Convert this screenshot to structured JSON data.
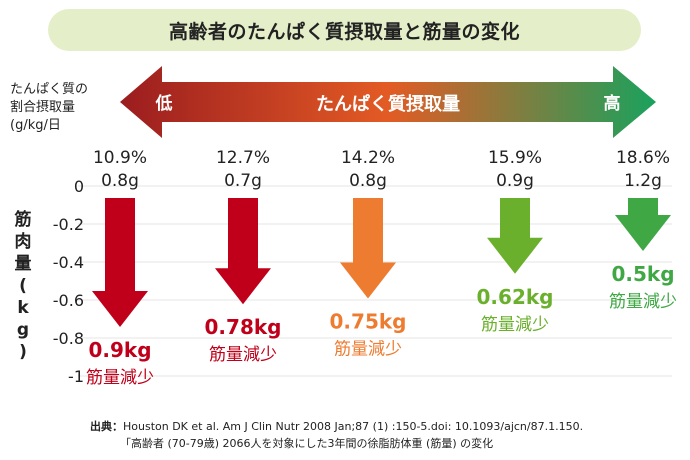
{
  "title": "高齢者のたんぱく質摂取量と筋量の変化",
  "intake_axis": {
    "label_lines": [
      "たんぱく質の",
      "割合摂取量",
      "(g/kg/日"
    ],
    "arrow_label": "たんぱく質摂取量",
    "low_label": "低",
    "high_label": "高"
  },
  "chart_data": {
    "type": "bar",
    "categories": [
      "10.9%\n0.8g",
      "12.7%\n0.7g",
      "14.2%\n0.8g",
      "15.9%\n0.9g",
      "18.6%\n1.2g"
    ],
    "protein_percent": [
      "10.9%",
      "12.7%",
      "14.2%",
      "15.9%",
      "18.6%"
    ],
    "protein_g_per_kg": [
      "0.8g",
      "0.7g",
      "0.8g",
      "0.9g",
      "1.2g"
    ],
    "values": [
      -0.9,
      -0.78,
      -0.75,
      -0.62,
      -0.5
    ],
    "value_labels": [
      "0.9kg",
      "0.78kg",
      "0.75kg",
      "0.62kg",
      "0.5kg"
    ],
    "change_label": "筋量減少",
    "colors": [
      "#c0001a",
      "#c0001a",
      "#ee7c30",
      "#6ab02c",
      "#3fa845"
    ],
    "ylabel": "筋肉量(kg)",
    "ylim": [
      -1,
      0
    ],
    "yticks": [
      "0",
      "-0.2",
      "-0.4",
      "-0.6",
      "-0.8",
      "-1"
    ],
    "grid": true
  },
  "source": {
    "prefix": "出典：",
    "line1": "Houston DK et al. Am J Clin Nutr 2008 Jan;87 (1) :150-5.doi: 10.1093/ajcn/87.1.150.",
    "line2": "「高齢者 (70-79歳) 2066人を対象にした3年間の徐脂肪体重 (筋量) の変化"
  },
  "colors": {
    "title_bg": "#e4efc9",
    "gradient_start": "#9b1c1f",
    "gradient_mid": "#e35b24",
    "gradient_end": "#19a25d"
  }
}
